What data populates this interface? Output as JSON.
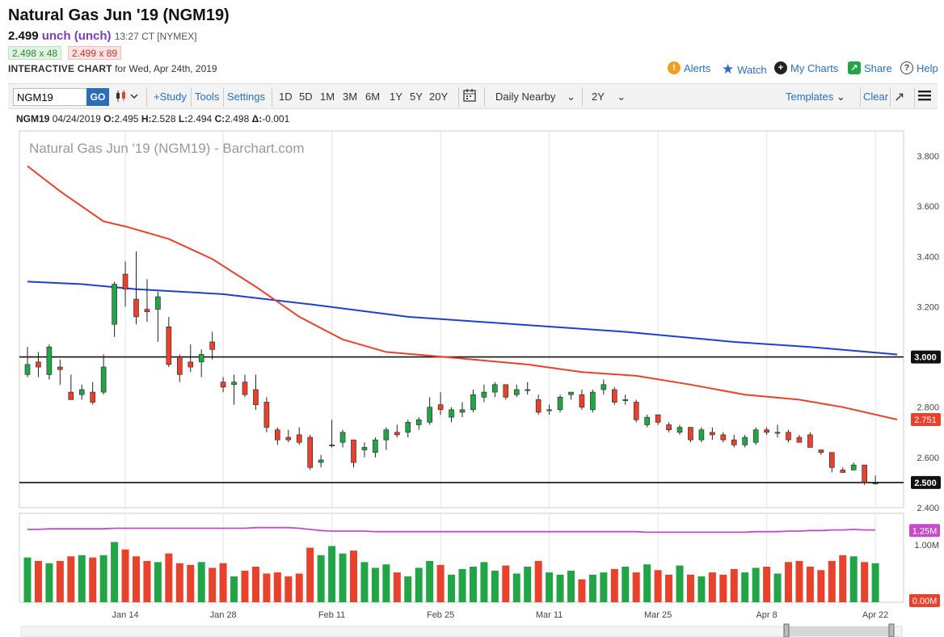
{
  "header": {
    "title": "Natural Gas Jun '19 (NGM19)",
    "price": "2.499",
    "change": "unch (unch)",
    "time": "13:27 CT [NYMEX]",
    "bid": "2.498 x 48",
    "ask": "2.499 x 89",
    "interactive_label": "INTERACTIVE CHART",
    "date_text": "for Wed, Apr 24th, 2019"
  },
  "toplinks": {
    "alerts": "Alerts",
    "watch": "Watch",
    "my_charts": "My Charts",
    "share": "Share",
    "help": "Help"
  },
  "toolbar": {
    "symbol_value": "NGM19",
    "go_label": "GO",
    "study_label": "+Study",
    "tools_label": "Tools",
    "settings_label": "Settings",
    "periods": [
      "1D",
      "5D",
      "1M",
      "3M",
      "6M",
      "1Y",
      "5Y",
      "20Y"
    ],
    "nearby_label": "Daily Nearby",
    "range_label": "2Y",
    "templates_label": "Templates",
    "clear_label": "Clear"
  },
  "ohlc_line": {
    "symbol": "NGM19",
    "date": "04/24/2019",
    "o_label": "O:",
    "o": "2.495",
    "h_label": "H:",
    "h": "2.528",
    "l_label": "L:",
    "l": "2.494",
    "c_label": "C:",
    "c": "2.498",
    "d_label": "Δ:",
    "d": "-0.001"
  },
  "colors": {
    "up": "#22a546",
    "down": "#e8412c",
    "ma_red": "#e8412c",
    "ma_blue": "#1f3fd1",
    "volume_ma": "#c64ac9",
    "link": "#2a6ebb"
  },
  "chart_data": {
    "type": "candlestick",
    "watermark": "Natural Gas Jun '19 (NGM19) - Barchart.com",
    "y_ticks": [
      "3.800",
      "3.600",
      "3.400",
      "3.200",
      "3.000",
      "2.800",
      "2.600",
      "2.400"
    ],
    "ylim": [
      2.4,
      3.9
    ],
    "x_labels": [
      {
        "label": "Jan 14",
        "index": 9
      },
      {
        "label": "Jan 28",
        "index": 18
      },
      {
        "label": "Feb 11",
        "index": 28
      },
      {
        "label": "Feb 25",
        "index": 38
      },
      {
        "label": "Mar 11",
        "index": 48
      },
      {
        "label": "Mar 25",
        "index": 58
      },
      {
        "label": "Apr 8",
        "index": 68
      },
      {
        "label": "Apr 22",
        "index": 78
      }
    ],
    "horizontal_lines": [
      {
        "value": 3.0,
        "label": "3.000"
      },
      {
        "value": 2.5,
        "label": "2.500"
      }
    ],
    "ma_red_label": "2.751",
    "ma_red": [
      [
        0,
        3.76
      ],
      [
        3,
        3.66
      ],
      [
        7,
        3.54
      ],
      [
        9,
        3.52
      ],
      [
        13,
        3.47
      ],
      [
        17,
        3.39
      ],
      [
        21,
        3.28
      ],
      [
        25,
        3.16
      ],
      [
        29,
        3.07
      ],
      [
        33,
        3.02
      ],
      [
        37,
        3.005
      ],
      [
        41,
        2.99
      ],
      [
        46,
        2.97
      ],
      [
        51,
        2.94
      ],
      [
        56,
        2.925
      ],
      [
        61,
        2.89
      ],
      [
        66,
        2.85
      ],
      [
        71,
        2.83
      ],
      [
        75,
        2.8
      ],
      [
        80,
        2.751
      ]
    ],
    "ma_blue": [
      [
        0,
        3.3
      ],
      [
        5,
        3.29
      ],
      [
        10,
        3.27
      ],
      [
        18,
        3.25
      ],
      [
        26,
        3.21
      ],
      [
        35,
        3.16
      ],
      [
        45,
        3.13
      ],
      [
        55,
        3.1
      ],
      [
        65,
        3.06
      ],
      [
        72,
        3.04
      ],
      [
        80,
        3.01
      ]
    ],
    "candles": [
      {
        "o": 2.93,
        "h": 3.04,
        "l": 2.92,
        "c": 2.97
      },
      {
        "o": 2.98,
        "h": 3.02,
        "l": 2.92,
        "c": 2.96
      },
      {
        "o": 2.93,
        "h": 3.05,
        "l": 2.91,
        "c": 3.04
      },
      {
        "o": 2.96,
        "h": 2.99,
        "l": 2.89,
        "c": 2.95
      },
      {
        "o": 2.86,
        "h": 2.93,
        "l": 2.84,
        "c": 2.83
      },
      {
        "o": 2.85,
        "h": 2.89,
        "l": 2.83,
        "c": 2.87
      },
      {
        "o": 2.86,
        "h": 2.9,
        "l": 2.81,
        "c": 2.82
      },
      {
        "o": 2.86,
        "h": 3.01,
        "l": 2.85,
        "c": 2.96
      },
      {
        "o": 3.13,
        "h": 3.3,
        "l": 3.08,
        "c": 3.29
      },
      {
        "o": 3.33,
        "h": 3.38,
        "l": 3.2,
        "c": 3.27
      },
      {
        "o": 3.23,
        "h": 3.42,
        "l": 3.13,
        "c": 3.16
      },
      {
        "o": 3.19,
        "h": 3.31,
        "l": 3.14,
        "c": 3.18
      },
      {
        "o": 3.19,
        "h": 3.26,
        "l": 3.06,
        "c": 3.24
      },
      {
        "o": 3.12,
        "h": 3.16,
        "l": 2.96,
        "c": 2.97
      },
      {
        "o": 3.0,
        "h": 3.01,
        "l": 2.9,
        "c": 2.93
      },
      {
        "o": 2.98,
        "h": 3.05,
        "l": 2.94,
        "c": 2.96
      },
      {
        "o": 2.98,
        "h": 3.03,
        "l": 2.92,
        "c": 3.01
      },
      {
        "o": 3.06,
        "h": 3.1,
        "l": 2.99,
        "c": 3.03
      },
      {
        "o": 2.9,
        "h": 2.92,
        "l": 2.86,
        "c": 2.88
      },
      {
        "o": 2.89,
        "h": 2.93,
        "l": 2.81,
        "c": 2.9
      },
      {
        "o": 2.9,
        "h": 2.93,
        "l": 2.84,
        "c": 2.85
      },
      {
        "o": 2.87,
        "h": 2.93,
        "l": 2.79,
        "c": 2.81
      },
      {
        "o": 2.82,
        "h": 2.84,
        "l": 2.7,
        "c": 2.72
      },
      {
        "o": 2.71,
        "h": 2.72,
        "l": 2.65,
        "c": 2.67
      },
      {
        "o": 2.68,
        "h": 2.71,
        "l": 2.66,
        "c": 2.67
      },
      {
        "o": 2.69,
        "h": 2.72,
        "l": 2.65,
        "c": 2.66
      },
      {
        "o": 2.68,
        "h": 2.69,
        "l": 2.55,
        "c": 2.56
      },
      {
        "o": 2.58,
        "h": 2.61,
        "l": 2.56,
        "c": 2.59
      },
      {
        "o": 2.65,
        "h": 2.75,
        "l": 2.64,
        "c": 2.65
      },
      {
        "o": 2.66,
        "h": 2.71,
        "l": 2.64,
        "c": 2.7
      },
      {
        "o": 2.67,
        "h": 2.67,
        "l": 2.56,
        "c": 2.58
      },
      {
        "o": 2.63,
        "h": 2.66,
        "l": 2.6,
        "c": 2.64
      },
      {
        "o": 2.62,
        "h": 2.68,
        "l": 2.6,
        "c": 2.67
      },
      {
        "o": 2.67,
        "h": 2.72,
        "l": 2.63,
        "c": 2.71
      },
      {
        "o": 2.7,
        "h": 2.73,
        "l": 2.68,
        "c": 2.69
      },
      {
        "o": 2.7,
        "h": 2.75,
        "l": 2.68,
        "c": 2.74
      },
      {
        "o": 2.73,
        "h": 2.76,
        "l": 2.71,
        "c": 2.75
      },
      {
        "o": 2.74,
        "h": 2.84,
        "l": 2.73,
        "c": 2.8
      },
      {
        "o": 2.81,
        "h": 2.86,
        "l": 2.77,
        "c": 2.79
      },
      {
        "o": 2.76,
        "h": 2.8,
        "l": 2.74,
        "c": 2.79
      },
      {
        "o": 2.78,
        "h": 2.82,
        "l": 2.76,
        "c": 2.79
      },
      {
        "o": 2.79,
        "h": 2.87,
        "l": 2.78,
        "c": 2.85
      },
      {
        "o": 2.84,
        "h": 2.89,
        "l": 2.82,
        "c": 2.86
      },
      {
        "o": 2.86,
        "h": 2.9,
        "l": 2.84,
        "c": 2.89
      },
      {
        "o": 2.89,
        "h": 2.89,
        "l": 2.83,
        "c": 2.84
      },
      {
        "o": 2.85,
        "h": 2.89,
        "l": 2.84,
        "c": 2.87
      },
      {
        "o": 2.87,
        "h": 2.9,
        "l": 2.85,
        "c": 2.87
      },
      {
        "o": 2.83,
        "h": 2.85,
        "l": 2.77,
        "c": 2.78
      },
      {
        "o": 2.79,
        "h": 2.81,
        "l": 2.77,
        "c": 2.79
      },
      {
        "o": 2.79,
        "h": 2.85,
        "l": 2.78,
        "c": 2.84
      },
      {
        "o": 2.85,
        "h": 2.86,
        "l": 2.83,
        "c": 2.86
      },
      {
        "o": 2.85,
        "h": 2.87,
        "l": 2.79,
        "c": 2.8
      },
      {
        "o": 2.79,
        "h": 2.87,
        "l": 2.78,
        "c": 2.86
      },
      {
        "o": 2.87,
        "h": 2.91,
        "l": 2.85,
        "c": 2.89
      },
      {
        "o": 2.87,
        "h": 2.88,
        "l": 2.81,
        "c": 2.82
      },
      {
        "o": 2.83,
        "h": 2.85,
        "l": 2.81,
        "c": 2.83
      },
      {
        "o": 2.82,
        "h": 2.83,
        "l": 2.74,
        "c": 2.75
      },
      {
        "o": 2.73,
        "h": 2.77,
        "l": 2.72,
        "c": 2.76
      },
      {
        "o": 2.77,
        "h": 2.77,
        "l": 2.73,
        "c": 2.74
      },
      {
        "o": 2.73,
        "h": 2.74,
        "l": 2.7,
        "c": 2.71
      },
      {
        "o": 2.7,
        "h": 2.73,
        "l": 2.69,
        "c": 2.72
      },
      {
        "o": 2.72,
        "h": 2.72,
        "l": 2.66,
        "c": 2.67
      },
      {
        "o": 2.67,
        "h": 2.72,
        "l": 2.66,
        "c": 2.71
      },
      {
        "o": 2.7,
        "h": 2.72,
        "l": 2.67,
        "c": 2.69
      },
      {
        "o": 2.69,
        "h": 2.7,
        "l": 2.66,
        "c": 2.67
      },
      {
        "o": 2.67,
        "h": 2.69,
        "l": 2.64,
        "c": 2.65
      },
      {
        "o": 2.65,
        "h": 2.69,
        "l": 2.64,
        "c": 2.68
      },
      {
        "o": 2.66,
        "h": 2.72,
        "l": 2.65,
        "c": 2.71
      },
      {
        "o": 2.71,
        "h": 2.72,
        "l": 2.69,
        "c": 2.7
      },
      {
        "o": 2.7,
        "h": 2.73,
        "l": 2.68,
        "c": 2.7
      },
      {
        "o": 2.7,
        "h": 2.71,
        "l": 2.66,
        "c": 2.67
      },
      {
        "o": 2.68,
        "h": 2.69,
        "l": 2.66,
        "c": 2.66
      },
      {
        "o": 2.69,
        "h": 2.7,
        "l": 2.64,
        "c": 2.64
      },
      {
        "o": 2.63,
        "h": 2.63,
        "l": 2.61,
        "c": 2.62
      },
      {
        "o": 2.62,
        "h": 2.62,
        "l": 2.54,
        "c": 2.56
      },
      {
        "o": 2.55,
        "h": 2.56,
        "l": 2.54,
        "c": 2.54
      },
      {
        "o": 2.55,
        "h": 2.58,
        "l": 2.55,
        "c": 2.57
      },
      {
        "o": 2.57,
        "h": 2.57,
        "l": 2.49,
        "c": 2.5
      },
      {
        "o": 2.495,
        "h": 2.528,
        "l": 2.494,
        "c": 2.498
      }
    ],
    "volume": {
      "labels": [
        "1.25M",
        "1.00M",
        "0.00M"
      ],
      "max": 1.55,
      "values": [
        0.78,
        0.72,
        0.68,
        0.72,
        0.8,
        0.82,
        0.78,
        0.82,
        1.05,
        0.92,
        0.8,
        0.72,
        0.7,
        0.85,
        0.68,
        0.65,
        0.7,
        0.6,
        0.68,
        0.45,
        0.55,
        0.62,
        0.5,
        0.52,
        0.45,
        0.5,
        0.95,
        0.82,
        0.98,
        0.85,
        0.9,
        0.7,
        0.6,
        0.66,
        0.52,
        0.45,
        0.6,
        0.72,
        0.65,
        0.48,
        0.58,
        0.62,
        0.7,
        0.55,
        0.64,
        0.5,
        0.62,
        0.72,
        0.52,
        0.48,
        0.55,
        0.4,
        0.48,
        0.52,
        0.58,
        0.62,
        0.52,
        0.66,
        0.56,
        0.48,
        0.64,
        0.48,
        0.45,
        0.52,
        0.48,
        0.58,
        0.52,
        0.6,
        0.62,
        0.5,
        0.7,
        0.72,
        0.62,
        0.56,
        0.72,
        0.82,
        0.8,
        0.7,
        0.68
      ],
      "ma": [
        1.27,
        1.27,
        1.28,
        1.28,
        1.28,
        1.28,
        1.28,
        1.28,
        1.29,
        1.29,
        1.29,
        1.29,
        1.29,
        1.29,
        1.29,
        1.29,
        1.29,
        1.29,
        1.29,
        1.29,
        1.29,
        1.3,
        1.3,
        1.3,
        1.3,
        1.29,
        1.27,
        1.25,
        1.24,
        1.24,
        1.24,
        1.24,
        1.23,
        1.23,
        1.23,
        1.23,
        1.23,
        1.23,
        1.23,
        1.23,
        1.23,
        1.23,
        1.23,
        1.23,
        1.23,
        1.23,
        1.23,
        1.23,
        1.23,
        1.23,
        1.23,
        1.23,
        1.23,
        1.23,
        1.23,
        1.23,
        1.23,
        1.22,
        1.22,
        1.22,
        1.22,
        1.22,
        1.22,
        1.22,
        1.22,
        1.22,
        1.22,
        1.23,
        1.23,
        1.23,
        1.24,
        1.24,
        1.25,
        1.25,
        1.26,
        1.26,
        1.27,
        1.26,
        1.26
      ]
    }
  }
}
